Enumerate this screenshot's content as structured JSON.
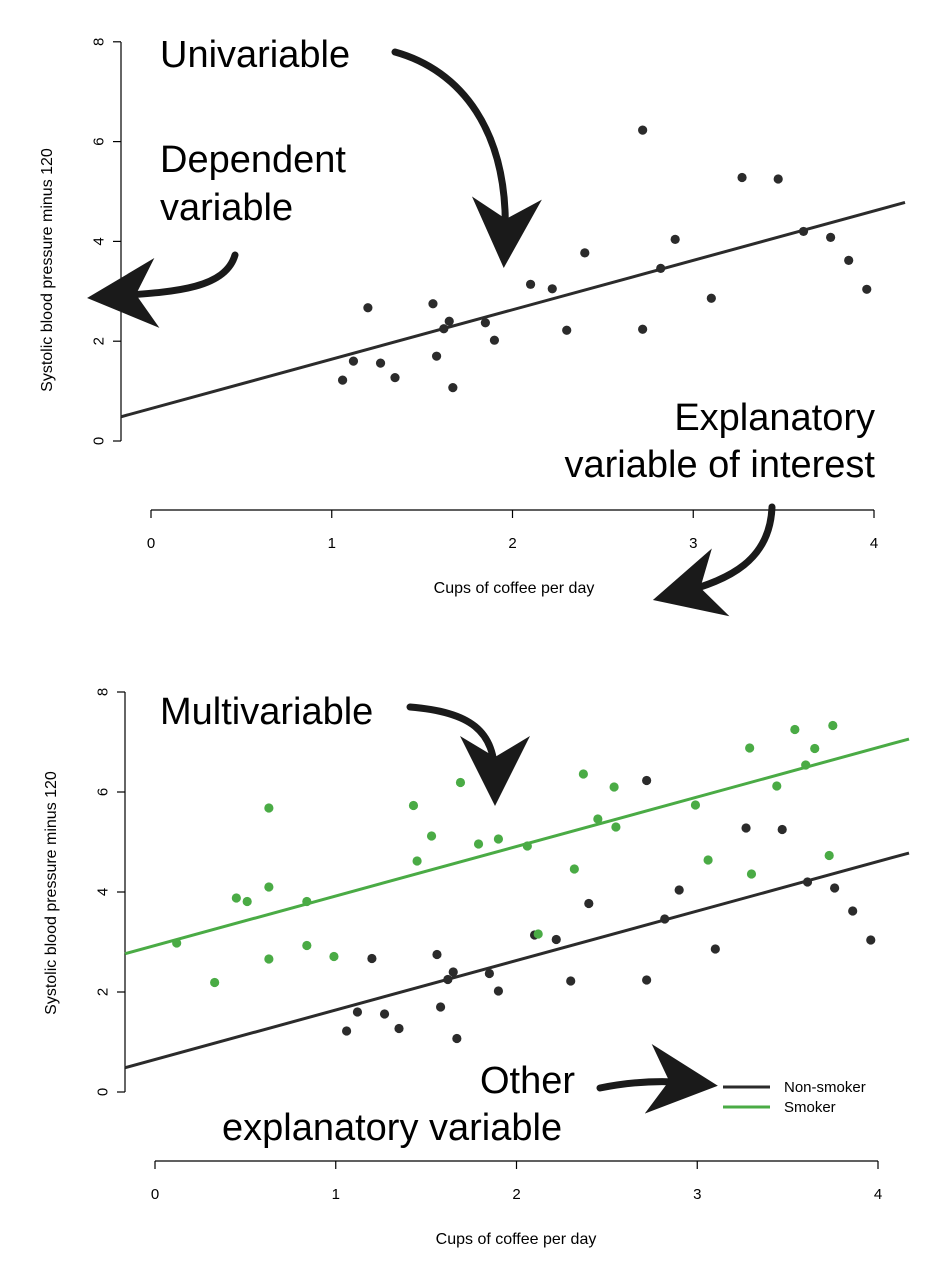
{
  "colors": {
    "non_smoker": "#2b2b2b",
    "smoker": "#4aab45",
    "arrow": "#1a1a1a"
  },
  "chart_data": [
    {
      "type": "scatter",
      "xlabel": "Cups of coffee per day",
      "ylabel": "Systolic blood pressure minus 120",
      "xlim": [
        0,
        4
      ],
      "ylim": [
        0,
        8
      ],
      "x_ticks": [
        "0",
        "1",
        "2",
        "3",
        "4"
      ],
      "y_ticks": [
        "0",
        "2",
        "4",
        "6",
        "8"
      ],
      "grid": false,
      "series": [
        {
          "points": [
            [
              1.06,
              1.22
            ],
            [
              1.12,
              1.6
            ],
            [
              1.2,
              2.67
            ],
            [
              1.27,
              1.56
            ],
            [
              1.35,
              1.27
            ],
            [
              1.56,
              2.75
            ],
            [
              1.58,
              1.7
            ],
            [
              1.62,
              2.25
            ],
            [
              1.65,
              2.4
            ],
            [
              1.67,
              1.07
            ],
            [
              1.85,
              2.37
            ],
            [
              1.9,
              2.02
            ],
            [
              2.1,
              3.14
            ],
            [
              2.22,
              3.05
            ],
            [
              2.3,
              2.22
            ],
            [
              2.4,
              3.77
            ],
            [
              2.72,
              6.23
            ],
            [
              2.72,
              2.24
            ],
            [
              2.82,
              3.46
            ],
            [
              2.9,
              4.04
            ],
            [
              3.1,
              2.86
            ],
            [
              3.27,
              5.28
            ],
            [
              3.47,
              5.25
            ],
            [
              3.61,
              4.2
            ],
            [
              3.76,
              4.08
            ],
            [
              3.86,
              3.62
            ],
            [
              3.96,
              3.04
            ]
          ]
        }
      ],
      "fit_lines": [
        {
          "intercept": 0.65,
          "slope": 0.99
        }
      ],
      "annotations": {
        "univariable": "Univariable",
        "dependent_line1": "Dependent",
        "dependent_line2": "variable",
        "explanatory_line1": "Explanatory",
        "explanatory_line2": "variable of interest"
      }
    },
    {
      "type": "scatter",
      "xlabel": "Cups of coffee per day",
      "ylabel": "Systolic blood pressure minus 120",
      "xlim": [
        0,
        4
      ],
      "ylim": [
        0,
        8
      ],
      "x_ticks": [
        "0",
        "1",
        "2",
        "3",
        "4"
      ],
      "y_ticks": [
        "0",
        "2",
        "4",
        "6",
        "8"
      ],
      "grid": false,
      "legend_position": "bottom-right",
      "series": [
        {
          "name": "Non-smoker",
          "points": [
            [
              1.06,
              1.22
            ],
            [
              1.12,
              1.6
            ],
            [
              1.2,
              2.67
            ],
            [
              1.27,
              1.56
            ],
            [
              1.35,
              1.27
            ],
            [
              1.56,
              2.75
            ],
            [
              1.58,
              1.7
            ],
            [
              1.62,
              2.25
            ],
            [
              1.65,
              2.4
            ],
            [
              1.67,
              1.07
            ],
            [
              1.85,
              2.37
            ],
            [
              1.9,
              2.02
            ],
            [
              2.1,
              3.14
            ],
            [
              2.22,
              3.05
            ],
            [
              2.3,
              2.22
            ],
            [
              2.4,
              3.77
            ],
            [
              2.72,
              6.23
            ],
            [
              2.72,
              2.24
            ],
            [
              2.82,
              3.46
            ],
            [
              2.9,
              4.04
            ],
            [
              3.1,
              2.86
            ],
            [
              3.27,
              5.28
            ],
            [
              3.47,
              5.25
            ],
            [
              3.61,
              4.2
            ],
            [
              3.76,
              4.08
            ],
            [
              3.86,
              3.62
            ],
            [
              3.96,
              3.04
            ]
          ],
          "fit": {
            "intercept": 0.65,
            "slope": 0.99
          }
        },
        {
          "name": "Smoker",
          "points": [
            [
              0.12,
              2.98
            ],
            [
              0.33,
              2.19
            ],
            [
              0.45,
              3.88
            ],
            [
              0.51,
              3.81
            ],
            [
              0.63,
              4.1
            ],
            [
              0.63,
              2.66
            ],
            [
              0.63,
              5.68
            ],
            [
              0.84,
              3.81
            ],
            [
              0.84,
              2.93
            ],
            [
              0.99,
              2.71
            ],
            [
              1.43,
              5.73
            ],
            [
              1.45,
              4.62
            ],
            [
              1.53,
              5.12
            ],
            [
              1.69,
              6.19
            ],
            [
              1.79,
              4.96
            ],
            [
              1.9,
              5.06
            ],
            [
              2.06,
              4.92
            ],
            [
              2.12,
              3.16
            ],
            [
              2.32,
              4.46
            ],
            [
              2.37,
              6.36
            ],
            [
              2.45,
              5.46
            ],
            [
              2.54,
              6.1
            ],
            [
              2.55,
              5.3
            ],
            [
              2.99,
              5.74
            ],
            [
              3.06,
              4.64
            ],
            [
              3.29,
              6.88
            ],
            [
              3.3,
              4.36
            ],
            [
              3.44,
              6.12
            ],
            [
              3.54,
              7.25
            ],
            [
              3.6,
              6.54
            ],
            [
              3.65,
              6.87
            ],
            [
              3.73,
              4.73
            ],
            [
              3.75,
              7.33
            ]
          ],
          "fit": {
            "intercept": 2.93,
            "slope": 0.99
          }
        }
      ],
      "annotations": {
        "multivariable": "Multivariable",
        "other_line1": "Other",
        "other_line2": "explanatory variable"
      }
    }
  ]
}
